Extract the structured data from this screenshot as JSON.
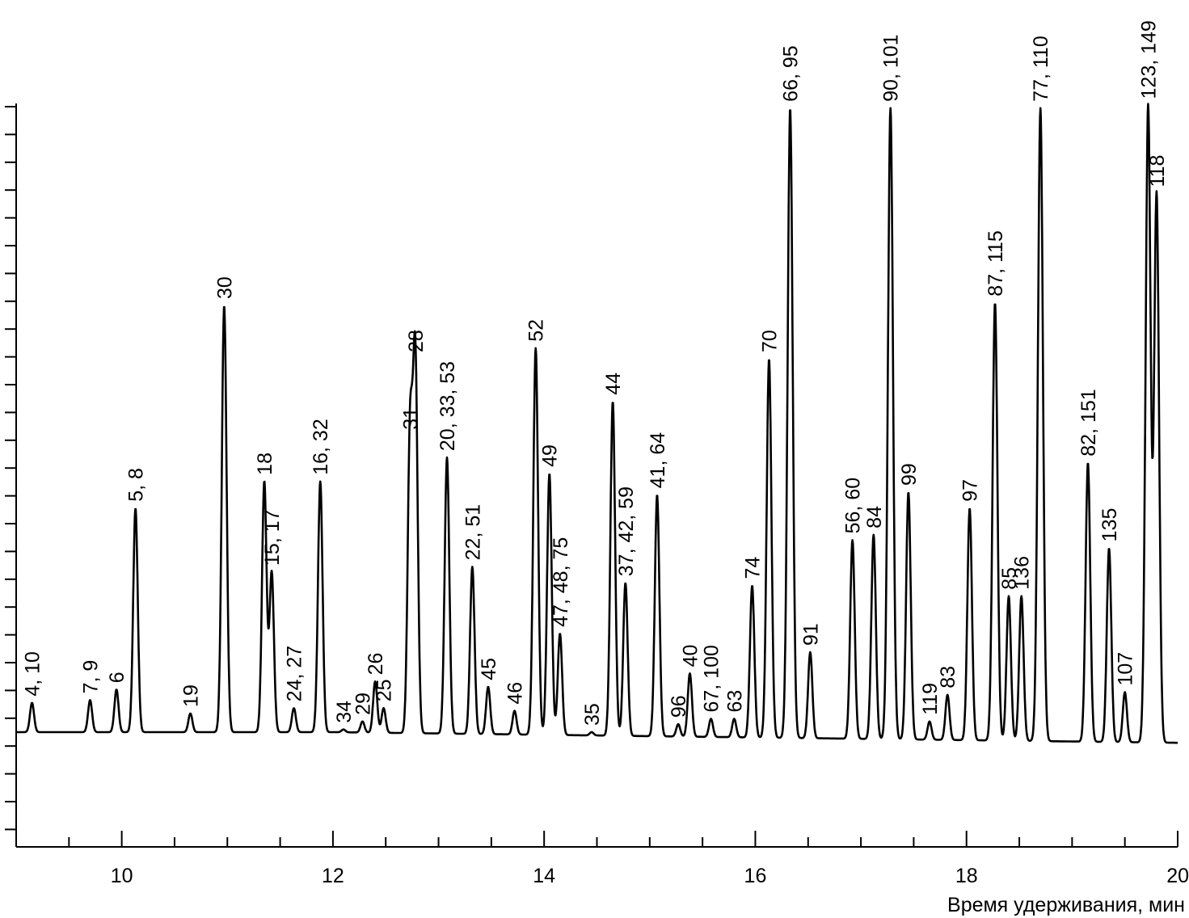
{
  "chart_data": {
    "type": "line",
    "xlabel": "Время удерживания, мин",
    "ylabel": "",
    "xlim": [
      9,
      20
    ],
    "x_ticks": [
      10,
      12,
      14,
      16,
      18,
      20
    ],
    "x_tick_labels": [
      "10",
      "12",
      "14",
      "16",
      "18",
      "20"
    ],
    "y_ticks_shown": true,
    "y_tick_labels_shown": false,
    "y_range_relative": [
      -1,
      24
    ],
    "grid": false,
    "baseline": 0,
    "peaks": [
      {
        "label": "4, 10",
        "x": 9.15,
        "y": 1.1
      },
      {
        "label": "7, 9",
        "x": 9.7,
        "y": 1.2
      },
      {
        "label": "6",
        "x": 9.95,
        "y": 1.6
      },
      {
        "label": "5, 8",
        "x": 10.13,
        "y": 8.4
      },
      {
        "label": "19",
        "x": 10.65,
        "y": 0.7
      },
      {
        "label": "30",
        "x": 10.97,
        "y": 16.0
      },
      {
        "label": "18",
        "x": 11.35,
        "y": 9.4
      },
      {
        "label": "15, 17",
        "x": 11.42,
        "y": 6.0
      },
      {
        "label": "24, 27",
        "x": 11.63,
        "y": 0.9
      },
      {
        "label": "16, 32",
        "x": 11.88,
        "y": 9.4
      },
      {
        "label": "34",
        "x": 12.1,
        "y": 0.1
      },
      {
        "label": "29",
        "x": 12.28,
        "y": 0.4
      },
      {
        "label": "26",
        "x": 12.4,
        "y": 1.9
      },
      {
        "label": "25",
        "x": 12.48,
        "y": 0.9
      },
      {
        "label": "31",
        "x": 12.73,
        "y": 11.1
      },
      {
        "label": "28",
        "x": 12.78,
        "y": 14.0
      },
      {
        "label": "20, 33, 53",
        "x": 13.08,
        "y": 10.3
      },
      {
        "label": "22, 51",
        "x": 13.32,
        "y": 6.2
      },
      {
        "label": "45",
        "x": 13.47,
        "y": 1.7
      },
      {
        "label": "46",
        "x": 13.72,
        "y": 0.8
      },
      {
        "label": "52",
        "x": 13.92,
        "y": 14.4
      },
      {
        "label": "49",
        "x": 14.05,
        "y": 9.7
      },
      {
        "label": "47, 48, 75",
        "x": 14.15,
        "y": 3.7
      },
      {
        "label": "35",
        "x": 14.45,
        "y": 0.0
      },
      {
        "label": "44",
        "x": 14.65,
        "y": 12.4
      },
      {
        "label": "37, 42, 59",
        "x": 14.77,
        "y": 5.6
      },
      {
        "label": "41, 64",
        "x": 15.07,
        "y": 8.9
      },
      {
        "label": "96",
        "x": 15.27,
        "y": 0.3
      },
      {
        "label": "40",
        "x": 15.38,
        "y": 2.2
      },
      {
        "label": "67, 100",
        "x": 15.58,
        "y": 0.5
      },
      {
        "label": "63",
        "x": 15.8,
        "y": 0.5
      },
      {
        "label": "74",
        "x": 15.97,
        "y": 5.5
      },
      {
        "label": "70",
        "x": 16.13,
        "y": 14.0
      },
      {
        "label": "66, 95",
        "x": 16.33,
        "y": 23.4
      },
      {
        "label": "91",
        "x": 16.52,
        "y": 3.0
      },
      {
        "label": "56, 60",
        "x": 16.92,
        "y": 7.2
      },
      {
        "label": "84",
        "x": 17.12,
        "y": 7.4
      },
      {
        "label": "90, 101",
        "x": 17.28,
        "y": 23.4
      },
      {
        "label": "99",
        "x": 17.45,
        "y": 9.0
      },
      {
        "label": "119",
        "x": 17.65,
        "y": 0.4
      },
      {
        "label": "83",
        "x": 17.82,
        "y": 1.4
      },
      {
        "label": "97",
        "x": 18.03,
        "y": 8.4
      },
      {
        "label": "87, 115",
        "x": 18.27,
        "y": 16.1
      },
      {
        "label": "85",
        "x": 18.4,
        "y": 5.1
      },
      {
        "label": "136",
        "x": 18.52,
        "y": 5.1
      },
      {
        "label": "77, 110",
        "x": 18.7,
        "y": 23.4
      },
      {
        "label": "82, 151",
        "x": 19.15,
        "y": 10.1
      },
      {
        "label": "135",
        "x": 19.35,
        "y": 6.9
      },
      {
        "label": "107",
        "x": 19.5,
        "y": 1.5
      },
      {
        "label": "123, 149",
        "x": 19.72,
        "y": 23.5
      },
      {
        "label": "118",
        "x": 19.8,
        "y": 20.2
      }
    ]
  }
}
